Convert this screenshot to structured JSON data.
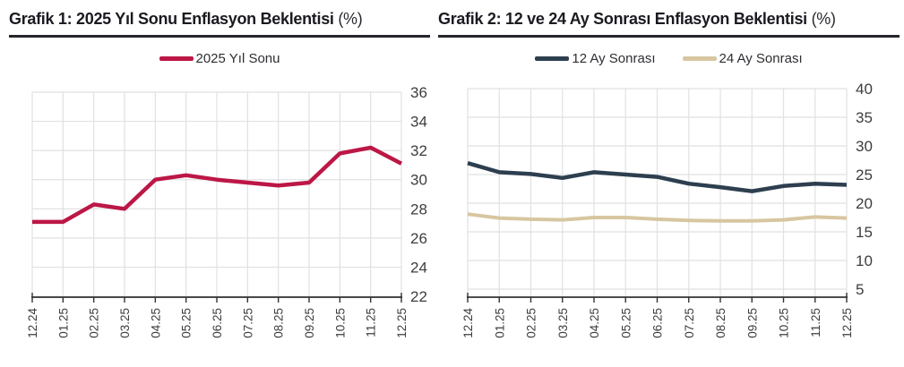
{
  "colors": {
    "grid": "#e0e1e3",
    "axis": "#333333",
    "tick_label": "#3d3d3d",
    "title": "#1a1a21",
    "series_red": "#bc1746",
    "series_navy": "#2d3f4f",
    "series_tan": "#d7c6a0"
  },
  "chart_data": [
    {
      "type": "line",
      "title": "Grafik 1: 2025 Yıl Sonu Enflasyon Beklentisi",
      "title_suffix": "(%)",
      "legend_position": "top",
      "grid": true,
      "y_axis_side": "right",
      "ylim": [
        22,
        36
      ],
      "ytick_step": 2,
      "yticks": [
        22,
        24,
        26,
        28,
        30,
        32,
        34,
        36
      ],
      "categories": [
        "12.24",
        "01.25",
        "02.25",
        "03.25",
        "04.25",
        "05.25",
        "06.25",
        "07.25",
        "08.25",
        "09.25",
        "10.25",
        "11.25",
        "12.25"
      ],
      "series": [
        {
          "name": "2025 Yıl Sonu",
          "color": "#bc1746",
          "values": [
            27.1,
            27.1,
            28.3,
            28.0,
            30.0,
            30.3,
            30.0,
            29.8,
            29.6,
            29.8,
            31.8,
            32.2,
            31.1
          ]
        }
      ]
    },
    {
      "type": "line",
      "title": "Grafik 2: 12 ve 24 Ay Sonrası Enflasyon Beklentisi",
      "title_suffix": "(%)",
      "legend_position": "top",
      "grid": true,
      "y_axis_side": "right",
      "ylim": [
        5,
        40
      ],
      "ytick_step": 5,
      "yticks": [
        5,
        10,
        15,
        20,
        25,
        30,
        35,
        40
      ],
      "categories": [
        "12.24",
        "01.25",
        "02.25",
        "03.25",
        "04.25",
        "05.25",
        "06.25",
        "07.25",
        "08.25",
        "09.25",
        "10.25",
        "11.25",
        "12.25"
      ],
      "series": [
        {
          "name": "12 Ay Sonrası",
          "color": "#2d3f4f",
          "values": [
            27.0,
            25.4,
            25.1,
            24.4,
            25.4,
            25.0,
            24.6,
            23.4,
            22.8,
            22.1,
            23.0,
            23.4,
            23.2
          ]
        },
        {
          "name": "24 Ay Sonrası",
          "color": "#d7c6a0",
          "values": [
            18.1,
            17.4,
            17.2,
            17.1,
            17.5,
            17.5,
            17.2,
            17.0,
            16.9,
            16.9,
            17.1,
            17.6,
            17.4
          ]
        }
      ]
    }
  ]
}
